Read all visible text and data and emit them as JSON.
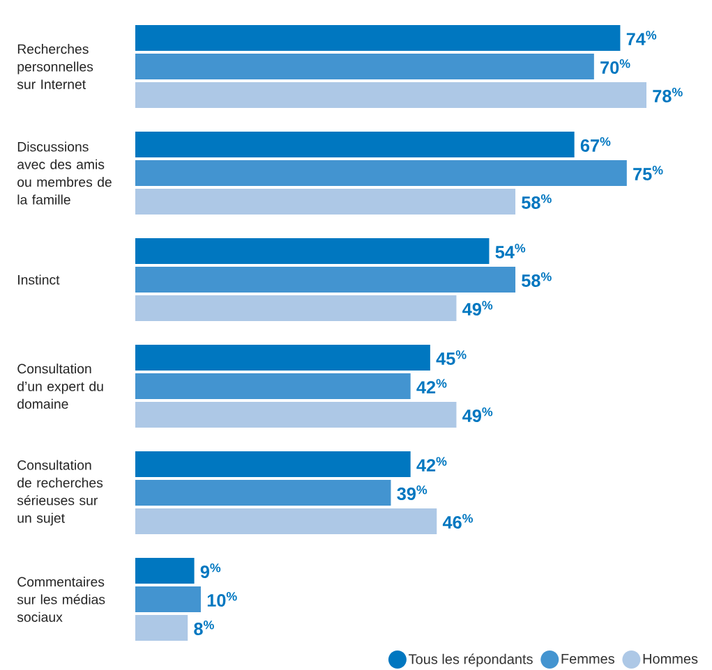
{
  "chart_data": {
    "type": "bar",
    "orientation": "horizontal",
    "tick_labels": "y",
    "legend": "bottom right",
    "categories": [
      "Recherches personnelles sur Internet",
      "Discussions avec des amis ou membres de la famille",
      "Instinct",
      "Consultation d’un expert du domaine",
      "Consultation de recherches sérieuses sur un sujet",
      "Commentaires sur les médias sociaux"
    ],
    "series": [
      {
        "name": "Tous les répondants",
        "color": "#0077c0",
        "values": [
          74,
          67,
          54,
          45,
          42,
          9
        ],
        "value_labels": [
          "74$^{%}$",
          "67$^{%}$",
          "54$^{%}$",
          "45$^{%}$",
          "42$^{%}$",
          "9$^{%}$"
        ]
      },
      {
        "name": "Femmes",
        "color": "#4394d0",
        "values": [
          70,
          75,
          58,
          42,
          39,
          10
        ],
        "value_labels": [
          "70$^{%}$",
          "75$^{%}$",
          "58$^{%}$",
          "42$^{%}$",
          "39$^{%}$",
          "10$^{%}$"
        ]
      },
      {
        "name": "Hommes",
        "color": "#adc8e6",
        "values": [
          78,
          58,
          49,
          49,
          46,
          8
        ],
        "value_labels": [
          "78$^{%}$",
          "58$^{%}$",
          "49$^{%}$",
          "49$^{%}$",
          "46$^{%}$",
          "8$^{%}$"
        ]
      }
    ]
  }
}
